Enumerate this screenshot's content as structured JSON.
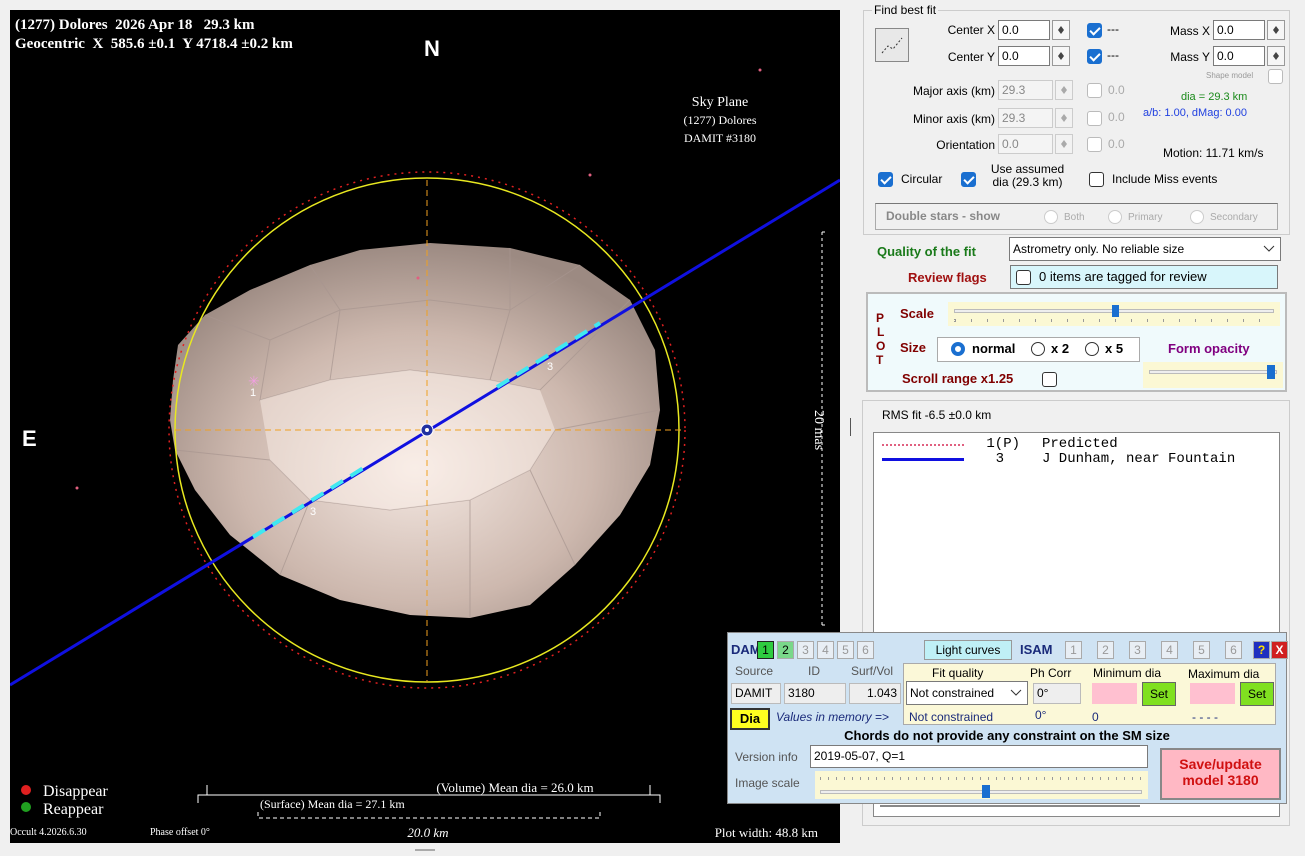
{
  "plot": {
    "title": "(1277) Dolores  2026 Apr 18   29.3 km",
    "geocentric": "Geocentric  X  585.6 ±0.1  Y 4718.4 ±0.2 km",
    "north": "N",
    "east": "E",
    "sky_plane": [
      "Sky Plane",
      "(1277) Dolores",
      "DAMIT #3180"
    ],
    "scale_mas": "20 mas",
    "chord_labels": [
      "1",
      "3",
      "3"
    ],
    "legend": [
      "Disappear",
      "Reappear"
    ],
    "volume_dia": "(Volume) Mean dia = 26.0 km",
    "surface_dia": "(Surface) Mean dia = 27.1 km",
    "scale_km": "20.0 km",
    "version": "Occult 4.2026.6.30",
    "phase_offset": "Phase offset 0°",
    "plot_width": "Plot width: 48.8 km"
  },
  "fit": {
    "title": "Find best fit",
    "center_x": {
      "label": "Center X",
      "value": "0.0",
      "flag": "---"
    },
    "center_y": {
      "label": "Center Y",
      "value": "0.0",
      "flag": "---"
    },
    "mass_x": {
      "label": "Mass X",
      "value": "0.0"
    },
    "mass_y": {
      "label": "Mass Y",
      "value": "0.0"
    },
    "shape_model": "Shape model",
    "major_axis": {
      "label": "Major axis (km)",
      "value": "29.3",
      "unc": "0.0"
    },
    "minor_axis": {
      "label": "Minor axis (km)",
      "value": "29.3",
      "unc": "0.0"
    },
    "orientation": {
      "label": "Orientation",
      "value": "0.0",
      "unc": "0.0"
    },
    "dia": "dia = 29.3 km",
    "ab": "a/b: 1.00, dMag: 0.00",
    "motion": "Motion: 11.71 km/s",
    "circular": "Circular",
    "use_assumed": "Use assumed dia (29.3 km)",
    "include_miss": "Include Miss events",
    "double_stars": {
      "label": "Double stars - show",
      "options": [
        "Both",
        "Primary",
        "Secondary"
      ]
    },
    "quality_label": "Quality of the fit",
    "quality_value": "Astrometry only. No reliable size",
    "review_label": "Review flags",
    "review_value": "0 items are tagged for review"
  },
  "plot_settings": {
    "letters": [
      "P",
      "L",
      "O",
      "T"
    ],
    "scale": "Scale",
    "size": "Size",
    "size_options": [
      "normal",
      "x 2",
      "x 5"
    ],
    "form_opacity": "Form opacity",
    "scroll_range": "Scroll range x1.25"
  },
  "rms": "RMS fit -6.5 ±0.0 km",
  "chords": [
    {
      "id": "1(P)",
      "name": "Predicted"
    },
    {
      "id": "3",
      "name": "J Dunham, near Fountain"
    }
  ],
  "damit": {
    "label": "DAMIT",
    "models": [
      "1",
      "2",
      "3",
      "4",
      "5",
      "6"
    ],
    "light_curves": "Light curves",
    "isam_label": "ISAM",
    "isam_models": [
      "1",
      "2",
      "3",
      "4",
      "5",
      "6"
    ],
    "help": "?",
    "close": "X",
    "headers": [
      "Source",
      "ID",
      "Surf/Vol",
      "Fit quality",
      "Ph Corr",
      "Minimum dia",
      "Maximum dia"
    ],
    "source": "DAMIT",
    "id": "3180",
    "surf_vol": "1.043",
    "fit_quality": "Not constrained",
    "ph_corr": "0°",
    "set": "Set",
    "dia_button": "Dia",
    "memory_label": "Values in memory =>",
    "memory_fit": "Not constrained",
    "memory_ph": "0°",
    "memory_min": "0",
    "memory_max": "- - - -",
    "note": "Chords do not provide any constraint on the SM size",
    "version_label": "Version info",
    "version_value": "2019-05-07, Q=1",
    "image_scale": "Image scale",
    "save": "Save/update model 3180"
  }
}
